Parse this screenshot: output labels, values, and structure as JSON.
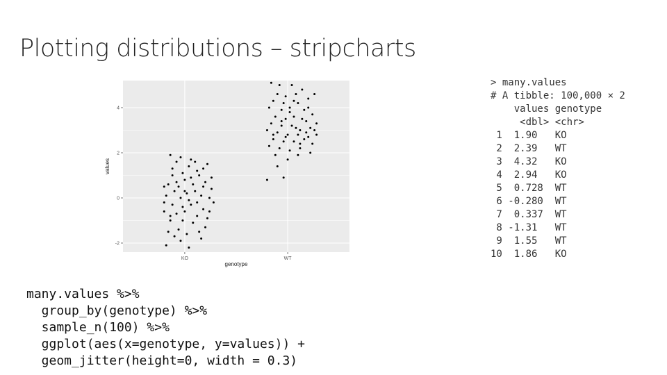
{
  "title": "Plotting distributions – stripcharts",
  "chart_data": {
    "type": "scatter",
    "xlabel": "genotype",
    "ylabel": "values",
    "categories": [
      "KO",
      "WT"
    ],
    "x_ticks": [
      "KO",
      "WT"
    ],
    "y_ticks": [
      -2,
      0,
      2,
      4
    ],
    "y_tick_labels": [
      "-2",
      "0",
      "2",
      "4"
    ],
    "ylim": [
      -2.4,
      5.2
    ],
    "grid": true,
    "background": "#ebebeb",
    "grid_color": "#ffffff",
    "point_color": "#000000",
    "jitter_width": 0.3,
    "series": [
      {
        "category": "KO",
        "points": [
          [
            0.86,
            1.9
          ],
          [
            0.96,
            1.8
          ],
          [
            1.06,
            1.7
          ],
          [
            1.18,
            1.3
          ],
          [
            1.22,
            1.5
          ],
          [
            1.12,
            1.2
          ],
          [
            0.98,
            1.1
          ],
          [
            0.88,
            1.3
          ],
          [
            1.04,
            1.4
          ],
          [
            0.92,
            1.6
          ],
          [
            1.14,
            1.0
          ],
          [
            0.84,
            0.6
          ],
          [
            0.94,
            0.5
          ],
          [
            1.0,
            0.8
          ],
          [
            1.08,
            0.6
          ],
          [
            1.2,
            0.7
          ],
          [
            1.26,
            0.4
          ],
          [
            0.8,
            0.5
          ],
          [
            0.9,
            0.3
          ],
          [
            1.02,
            0.2
          ],
          [
            1.1,
            0.3
          ],
          [
            1.16,
            0.1
          ],
          [
            0.82,
            0.1
          ],
          [
            0.96,
            0.0
          ],
          [
            1.04,
            -0.1
          ],
          [
            1.24,
            0.0
          ],
          [
            1.28,
            -0.2
          ],
          [
            0.88,
            -0.3
          ],
          [
            0.98,
            -0.4
          ],
          [
            1.06,
            -0.3
          ],
          [
            1.18,
            -0.5
          ],
          [
            0.8,
            -0.6
          ],
          [
            0.92,
            -0.7
          ],
          [
            1.0,
            -0.6
          ],
          [
            1.12,
            -0.8
          ],
          [
            1.22,
            -0.9
          ],
          [
            0.86,
            -1.0
          ],
          [
            1.08,
            -1.1
          ],
          [
            1.2,
            -1.3
          ],
          [
            0.94,
            -1.4
          ],
          [
            0.84,
            -1.5
          ],
          [
            1.02,
            -1.6
          ],
          [
            0.9,
            -1.7
          ],
          [
            1.14,
            -1.5
          ],
          [
            0.82,
            -2.1
          ],
          [
            0.96,
            -1.9
          ],
          [
            1.04,
            -2.2
          ],
          [
            1.16,
            -1.8
          ],
          [
            0.88,
            1.0
          ],
          [
            1.0,
            0.3
          ],
          [
            1.26,
            0.9
          ],
          [
            0.8,
            -0.2
          ],
          [
            1.12,
            -0.2
          ],
          [
            0.92,
            0.7
          ],
          [
            1.18,
            0.5
          ],
          [
            1.06,
            0.9
          ],
          [
            0.86,
            -0.8
          ],
          [
            1.24,
            -0.6
          ],
          [
            0.98,
            -1.0
          ],
          [
            1.1,
            1.6
          ]
        ]
      },
      {
        "category": "WT",
        "points": [
          [
            1.84,
            5.1
          ],
          [
            1.92,
            5.0
          ],
          [
            2.04,
            5.0
          ],
          [
            2.14,
            4.8
          ],
          [
            1.9,
            4.6
          ],
          [
            1.98,
            4.5
          ],
          [
            2.08,
            4.6
          ],
          [
            2.2,
            4.4
          ],
          [
            2.26,
            4.6
          ],
          [
            1.86,
            4.3
          ],
          [
            1.96,
            4.2
          ],
          [
            2.1,
            4.2
          ],
          [
            2.2,
            4.0
          ],
          [
            1.82,
            4.0
          ],
          [
            1.94,
            3.9
          ],
          [
            2.02,
            3.8
          ],
          [
            2.16,
            3.9
          ],
          [
            2.24,
            3.7
          ],
          [
            1.88,
            3.6
          ],
          [
            1.98,
            3.5
          ],
          [
            2.06,
            3.6
          ],
          [
            2.18,
            3.4
          ],
          [
            2.28,
            3.3
          ],
          [
            1.84,
            3.3
          ],
          [
            1.94,
            3.2
          ],
          [
            2.04,
            3.2
          ],
          [
            2.12,
            3.0
          ],
          [
            2.22,
            3.1
          ],
          [
            1.8,
            3.0
          ],
          [
            1.9,
            2.9
          ],
          [
            2.0,
            2.8
          ],
          [
            2.1,
            2.8
          ],
          [
            2.2,
            2.7
          ],
          [
            2.28,
            2.8
          ],
          [
            1.86,
            2.6
          ],
          [
            1.96,
            2.5
          ],
          [
            2.06,
            2.5
          ],
          [
            2.16,
            2.6
          ],
          [
            2.24,
            2.4
          ],
          [
            1.82,
            2.3
          ],
          [
            1.92,
            2.2
          ],
          [
            2.02,
            2.1
          ],
          [
            2.12,
            2.2
          ],
          [
            2.22,
            2.0
          ],
          [
            1.88,
            1.9
          ],
          [
            2.0,
            1.7
          ],
          [
            2.1,
            1.9
          ],
          [
            1.9,
            1.4
          ],
          [
            1.8,
            0.8
          ],
          [
            1.96,
            0.9
          ],
          [
            2.14,
            3.5
          ],
          [
            2.08,
            3.1
          ],
          [
            1.94,
            3.4
          ],
          [
            2.18,
            2.9
          ],
          [
            2.02,
            4.0
          ],
          [
            1.86,
            2.8
          ],
          [
            2.26,
            3.0
          ],
          [
            2.12,
            2.4
          ],
          [
            1.98,
            2.7
          ],
          [
            2.06,
            4.3
          ]
        ]
      }
    ]
  },
  "console": {
    "lines": [
      "> many.values",
      "# A tibble: 100,000 × 2",
      "    values genotype",
      "     <dbl> <chr>",
      " 1  1.90   KO",
      " 2  2.39   WT",
      " 3  4.32   KO",
      " 4  2.94   KO",
      " 5  0.728  WT",
      " 6 -0.280  WT",
      " 7  0.337  WT",
      " 8 -1.31   WT",
      " 9  1.55   WT",
      "10  1.86   KO"
    ]
  },
  "code": {
    "lines": [
      "many.values %>%",
      "  group_by(genotype) %>%",
      "  sample_n(100) %>%",
      "  ggplot(aes(x=genotype, y=values)) +",
      "  geom_jitter(height=0, width = 0.3)"
    ]
  }
}
